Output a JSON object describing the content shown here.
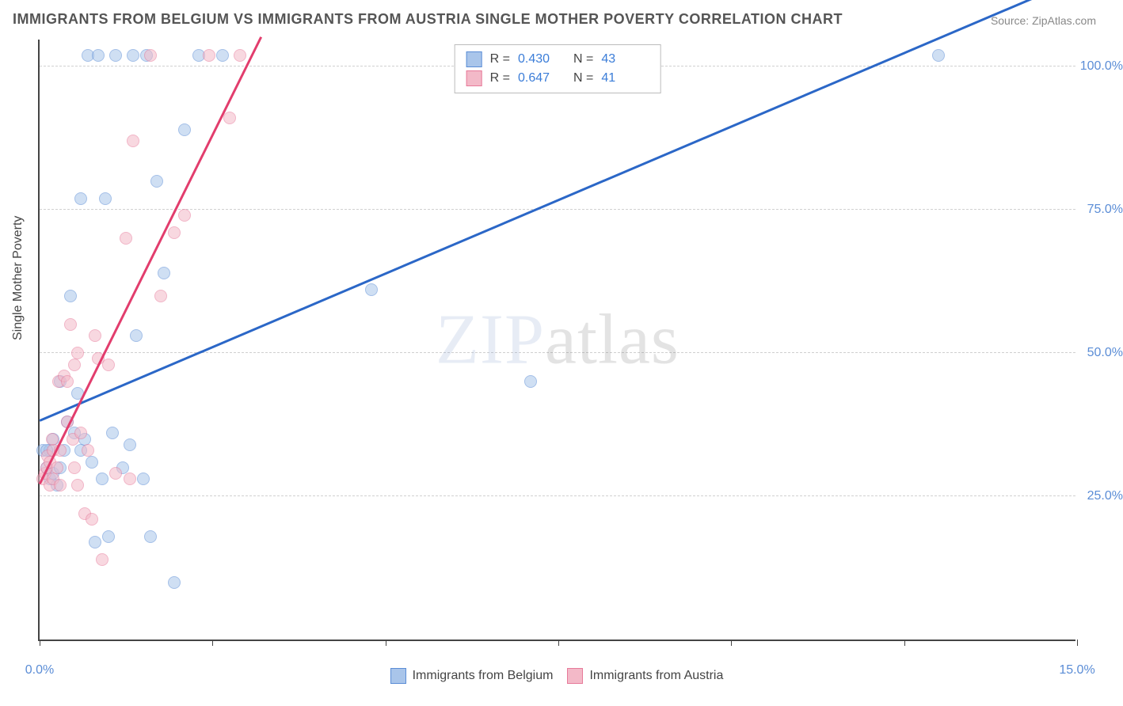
{
  "title": "IMMIGRANTS FROM BELGIUM VS IMMIGRANTS FROM AUSTRIA SINGLE MOTHER POVERTY CORRELATION CHART",
  "source": "Source: ZipAtlas.com",
  "ylabel": "Single Mother Poverty",
  "watermark_zip": "ZIP",
  "watermark_atlas": "atlas",
  "chart": {
    "type": "scatter",
    "xlim": [
      0,
      15
    ],
    "ylim": [
      0,
      105
    ],
    "background_color": "#ffffff",
    "grid_color": "#d0d0d0",
    "axis_color": "#444444",
    "ytick_values": [
      25,
      50,
      75,
      100
    ],
    "ytick_labels": [
      "25.0%",
      "50.0%",
      "75.0%",
      "100.0%"
    ],
    "xtick_values": [
      0,
      2.5,
      5,
      7.5,
      10,
      12.5,
      15
    ],
    "xtick_labels_shown": {
      "0": "0.0%",
      "15": "15.0%"
    },
    "marker_radius": 8,
    "marker_opacity": 0.55,
    "marker_border_width": 1.5,
    "series": [
      {
        "name": "Immigrants from Belgium",
        "fill_color": "#a9c5ea",
        "stroke_color": "#5b8dd6",
        "trend_color": "#2b67c7",
        "R": "0.430",
        "N": "43",
        "trend": {
          "x1": 0,
          "y1": 38,
          "x2": 15,
          "y2": 115
        },
        "points": [
          [
            0.05,
            33
          ],
          [
            0.1,
            30
          ],
          [
            0.15,
            28
          ],
          [
            0.15,
            33
          ],
          [
            0.2,
            29
          ],
          [
            0.2,
            35
          ],
          [
            0.25,
            27
          ],
          [
            0.3,
            30
          ],
          [
            0.3,
            45
          ],
          [
            0.35,
            33
          ],
          [
            0.4,
            38
          ],
          [
            0.45,
            60
          ],
          [
            0.5,
            36
          ],
          [
            0.55,
            43
          ],
          [
            0.6,
            33
          ],
          [
            0.6,
            77
          ],
          [
            0.65,
            35
          ],
          [
            0.7,
            102
          ],
          [
            0.75,
            31
          ],
          [
            0.8,
            17
          ],
          [
            0.85,
            102
          ],
          [
            0.9,
            28
          ],
          [
            0.95,
            77
          ],
          [
            1.0,
            18
          ],
          [
            1.05,
            36
          ],
          [
            1.1,
            102
          ],
          [
            1.2,
            30
          ],
          [
            1.3,
            34
          ],
          [
            1.35,
            102
          ],
          [
            1.4,
            53
          ],
          [
            1.5,
            28
          ],
          [
            1.55,
            102
          ],
          [
            1.6,
            18
          ],
          [
            1.7,
            80
          ],
          [
            1.8,
            64
          ],
          [
            1.95,
            10
          ],
          [
            2.1,
            89
          ],
          [
            2.3,
            102
          ],
          [
            2.65,
            102
          ],
          [
            4.8,
            61
          ],
          [
            7.1,
            45
          ],
          [
            13.0,
            102
          ],
          [
            0.1,
            33
          ]
        ]
      },
      {
        "name": "Immigrants from Austria",
        "fill_color": "#f3b9c8",
        "stroke_color": "#e77a9a",
        "trend_color": "#e23d6d",
        "R": "0.647",
        "N": "41",
        "trend": {
          "x1": 0,
          "y1": 27,
          "x2": 3.2,
          "y2": 105
        },
        "points": [
          [
            0.05,
            28
          ],
          [
            0.08,
            29
          ],
          [
            0.1,
            30
          ],
          [
            0.12,
            32
          ],
          [
            0.15,
            27
          ],
          [
            0.15,
            31
          ],
          [
            0.18,
            35
          ],
          [
            0.2,
            28
          ],
          [
            0.2,
            33
          ],
          [
            0.25,
            30
          ],
          [
            0.28,
            45
          ],
          [
            0.3,
            33
          ],
          [
            0.3,
            27
          ],
          [
            0.35,
            46
          ],
          [
            0.4,
            38
          ],
          [
            0.4,
            45
          ],
          [
            0.45,
            55
          ],
          [
            0.48,
            35
          ],
          [
            0.5,
            48
          ],
          [
            0.5,
            30
          ],
          [
            0.55,
            27
          ],
          [
            0.55,
            50
          ],
          [
            0.6,
            36
          ],
          [
            0.65,
            22
          ],
          [
            0.7,
            33
          ],
          [
            0.75,
            21
          ],
          [
            0.8,
            53
          ],
          [
            0.85,
            49
          ],
          [
            0.9,
            14
          ],
          [
            1.0,
            48
          ],
          [
            1.1,
            29
          ],
          [
            1.25,
            70
          ],
          [
            1.3,
            28
          ],
          [
            1.35,
            87
          ],
          [
            1.6,
            102
          ],
          [
            1.75,
            60
          ],
          [
            1.95,
            71
          ],
          [
            2.1,
            74
          ],
          [
            2.45,
            102
          ],
          [
            2.75,
            91
          ],
          [
            2.9,
            102
          ]
        ]
      }
    ]
  },
  "legend_top": {
    "r_label": "R =",
    "n_label": "N ="
  },
  "legend_bottom": [
    {
      "label": "Immigrants from Belgium",
      "fill": "#a9c5ea",
      "stroke": "#5b8dd6"
    },
    {
      "label": "Immigrants from Austria",
      "fill": "#f3b9c8",
      "stroke": "#e77a9a"
    }
  ]
}
